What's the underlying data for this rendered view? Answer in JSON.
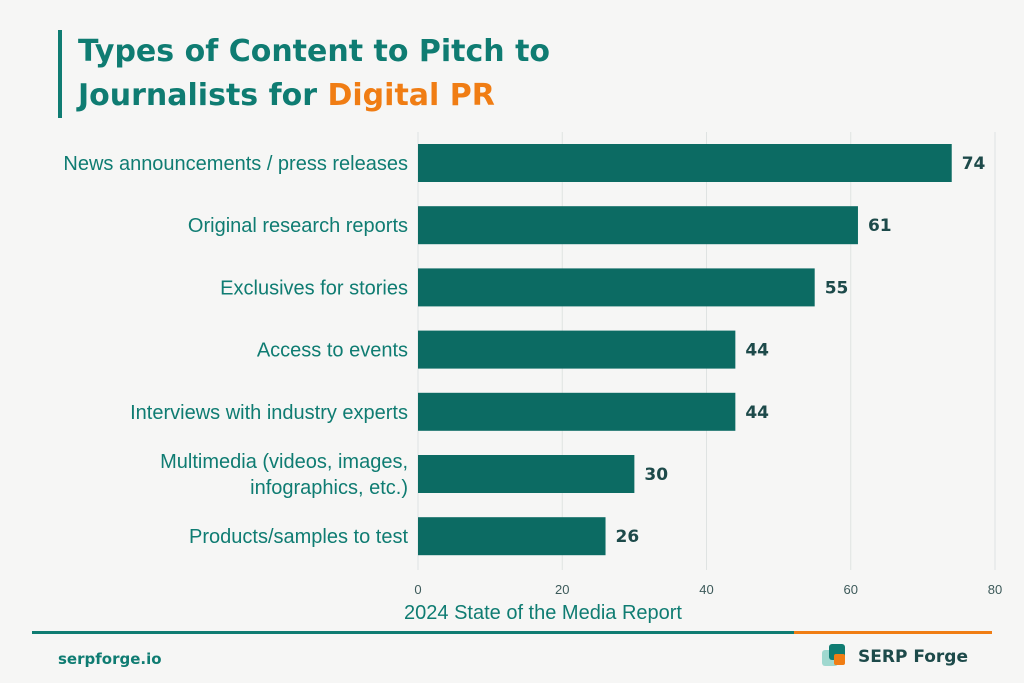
{
  "header": {
    "title_part1": "Types of Content to Pitch to",
    "title_part2": "Journalists for ",
    "title_accent": "Digital PR"
  },
  "chart_data": {
    "type": "bar",
    "orientation": "horizontal",
    "categories": [
      [
        "News announcements / press releases"
      ],
      [
        "Original research reports"
      ],
      [
        "Exclusives for stories"
      ],
      [
        "Access to events"
      ],
      [
        "Interviews with industry experts"
      ],
      [
        "Multimedia (videos, images,",
        "infographics, etc.)"
      ],
      [
        "Products/samples to test"
      ]
    ],
    "values": [
      74,
      61,
      55,
      44,
      44,
      30,
      26
    ],
    "xlabel": "2024 State of the Media Report",
    "xlim": [
      0,
      80
    ],
    "xticks": [
      0,
      20,
      40,
      60,
      80
    ],
    "grid": true,
    "bar_color": "#0c6b63",
    "label_color": "#0f7c72"
  },
  "footer": {
    "site": "serpforge.io",
    "brand": "SERP Forge"
  },
  "colors": {
    "teal": "#0f7c72",
    "orange": "#f07d14",
    "background": "#f6f6f5"
  }
}
